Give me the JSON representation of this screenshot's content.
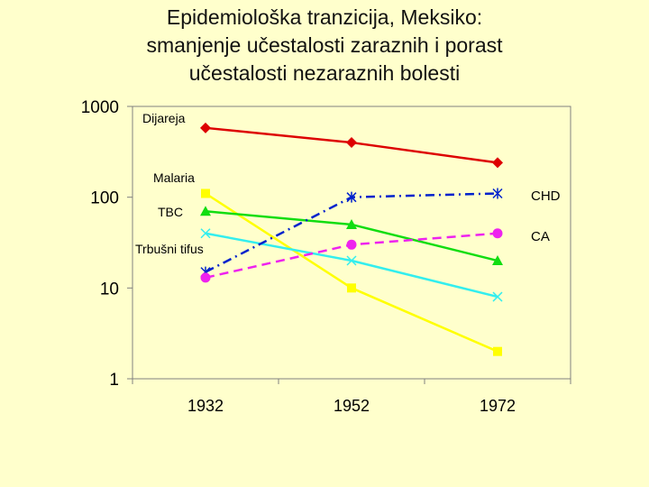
{
  "title_lines": [
    "Epidemiološka tranzicija, Meksiko:",
    "smanjenje učestalosti zaraznih i porast",
    "učestalosti nezaraznih bolesti"
  ],
  "chart_data": {
    "type": "line",
    "title": "Epidemiološka tranzicija, Meksiko: smanjenje učestalosti zaraznih i porast učestalosti nezaraznih bolesti",
    "xlabel": "",
    "ylabel": "",
    "yscale": "log",
    "ylim": [
      1,
      1000
    ],
    "y_ticks": [
      "1",
      "10",
      "100",
      "1000"
    ],
    "x": [
      "1932",
      "1952",
      "1972"
    ],
    "grid": false,
    "series": [
      {
        "name": "Dijareja",
        "color": "#dd0000",
        "marker": "diamond",
        "dash": "solid",
        "values": [
          580,
          400,
          240
        ]
      },
      {
        "name": "Malaria",
        "color": "#ffff00",
        "marker": "square",
        "dash": "solid",
        "values": [
          110,
          10,
          2
        ]
      },
      {
        "name": "TBC",
        "color": "#11dd11",
        "marker": "triangle",
        "dash": "solid",
        "values": [
          70,
          50,
          20
        ]
      },
      {
        "name": "Trbušni tifus",
        "color": "#33eeee",
        "marker": "x",
        "dash": "solid",
        "values": [
          40,
          20,
          8
        ]
      },
      {
        "name": "CHD",
        "color": "#0022cc",
        "marker": "star",
        "dash": "dashdot",
        "values": [
          15,
          100,
          110
        ]
      },
      {
        "name": "CA",
        "color": "#ee22ee",
        "marker": "circle",
        "dash": "dashed",
        "values": [
          13,
          30,
          40
        ]
      }
    ]
  },
  "colors": {
    "background": "#ffffcc",
    "plot_area": "#ffffcc",
    "axis": "#808080"
  }
}
